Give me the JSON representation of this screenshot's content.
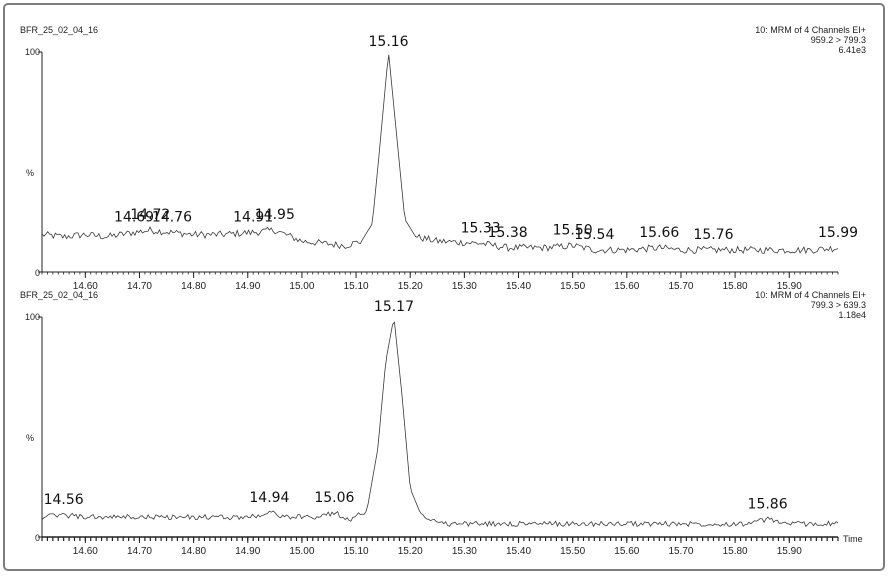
{
  "chart_data": [
    {
      "type": "line",
      "sample_label": "BFR_25_02_04_16",
      "info_lines": [
        "10: MRM of 4 Channels EI+",
        "959.2 > 799.3",
        "6.41e3"
      ],
      "xlabel": "",
      "ylabel": "%",
      "xlim": [
        14.52,
        15.99
      ],
      "ylim": [
        0,
        100
      ],
      "x_ticks": [
        14.6,
        14.7,
        14.8,
        14.9,
        15.0,
        15.1,
        15.2,
        15.3,
        15.4,
        15.5,
        15.6,
        15.7,
        15.8,
        15.9
      ],
      "x_tick_labels": [
        "14.60",
        "14.70",
        "14.80",
        "14.90",
        "15.00",
        "15.10",
        "15.20",
        "15.30",
        "15.40",
        "15.50",
        "15.60",
        "15.70",
        "15.80",
        "15.90"
      ],
      "y_tick_labels": [
        "0",
        "100"
      ],
      "series": [
        {
          "x": [
            14.52,
            14.56,
            14.6,
            14.64,
            14.69,
            14.72,
            14.76,
            14.8,
            14.85,
            14.91,
            14.95,
            15.0,
            15.04,
            15.08,
            15.11,
            15.13,
            15.145,
            15.16,
            15.175,
            15.19,
            15.21,
            15.25,
            15.33,
            15.38,
            15.45,
            15.5,
            15.54,
            15.6,
            15.66,
            15.7,
            15.76,
            15.82,
            15.88,
            15.94,
            15.99
          ],
          "y": [
            17,
            16,
            17,
            16,
            18,
            19,
            18,
            17,
            17,
            18,
            19,
            14,
            13,
            12,
            14,
            22,
            60,
            100,
            62,
            24,
            16,
            14,
            13,
            11,
            11,
            12,
            10,
            10,
            11,
            10,
            10,
            10,
            10,
            10,
            11
          ]
        }
      ],
      "peak_labels": [
        {
          "x": 14.69,
          "label": "14.69"
        },
        {
          "x": 14.72,
          "label": "14.72"
        },
        {
          "x": 14.76,
          "label": "14.76"
        },
        {
          "x": 14.91,
          "label": "14.91"
        },
        {
          "x": 14.95,
          "label": "14.95"
        },
        {
          "x": 15.16,
          "label": "15.16"
        },
        {
          "x": 15.33,
          "label": "15.33"
        },
        {
          "x": 15.38,
          "label": "15.38"
        },
        {
          "x": 15.5,
          "label": "15.50"
        },
        {
          "x": 15.54,
          "label": "15.54"
        },
        {
          "x": 15.66,
          "label": "15.66"
        },
        {
          "x": 15.76,
          "label": "15.76"
        },
        {
          "x": 15.99,
          "label": "15.99"
        }
      ]
    },
    {
      "type": "line",
      "sample_label": "BFR_25_02_04_16",
      "info_lines": [
        "10: MRM of 4 Channels EI+",
        "799.3 > 639.3",
        "1.18e4"
      ],
      "xlabel": "Time",
      "ylabel": "%",
      "xlim": [
        14.52,
        15.99
      ],
      "ylim": [
        0,
        100
      ],
      "x_ticks": [
        14.6,
        14.7,
        14.8,
        14.9,
        15.0,
        15.1,
        15.2,
        15.3,
        15.4,
        15.5,
        15.6,
        15.7,
        15.8,
        15.9
      ],
      "x_tick_labels": [
        "14.60",
        "14.70",
        "14.80",
        "14.90",
        "15.00",
        "15.10",
        "15.20",
        "15.30",
        "15.40",
        "15.50",
        "15.60",
        "15.70",
        "15.80",
        "15.90"
      ],
      "y_tick_labels": [
        "0",
        "100"
      ],
      "series": [
        {
          "x": [
            14.52,
            14.56,
            14.6,
            14.7,
            14.8,
            14.9,
            14.94,
            14.98,
            15.02,
            15.06,
            15.09,
            15.12,
            15.14,
            15.155,
            15.17,
            15.185,
            15.2,
            15.22,
            15.26,
            15.35,
            15.45,
            15.55,
            15.65,
            15.75,
            15.82,
            15.86,
            15.9,
            15.99
          ],
          "y": [
            9,
            10,
            9,
            9,
            9,
            9,
            11,
            9,
            9,
            11,
            8,
            12,
            40,
            80,
            100,
            64,
            22,
            10,
            6,
            6,
            6,
            6,
            6,
            6,
            6,
            8,
            6,
            6
          ]
        }
      ],
      "peak_labels": [
        {
          "x": 14.56,
          "label": "14.56"
        },
        {
          "x": 14.94,
          "label": "14.94"
        },
        {
          "x": 15.06,
          "label": "15.06"
        },
        {
          "x": 15.17,
          "label": "15.17"
        },
        {
          "x": 15.86,
          "label": "15.86"
        }
      ]
    }
  ]
}
